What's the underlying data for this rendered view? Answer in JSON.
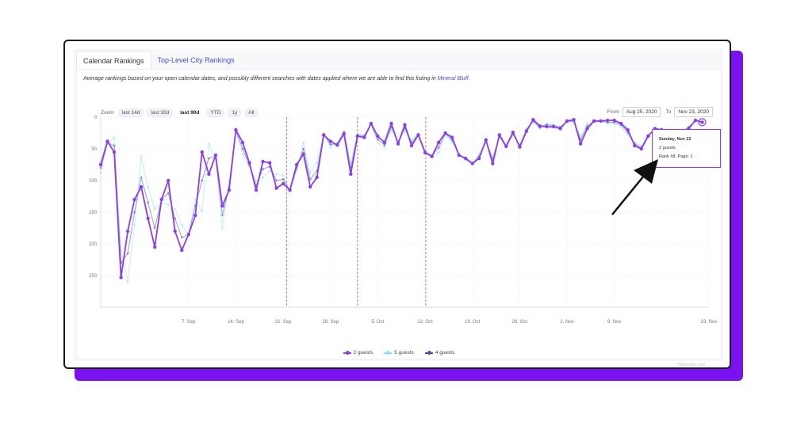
{
  "tabs": [
    {
      "label": "Calendar Rankings",
      "active": true
    },
    {
      "label": "Top-Level City Rankings",
      "active": false
    }
  ],
  "description": {
    "text": "Average rankings based on your open calendar dates, and possibly different searches with dates applied where we are able to find this listing in",
    "link": "Mineral Bluff."
  },
  "zoom": {
    "label": "Zoom",
    "options": [
      "last 14d",
      "last 30d",
      "last 90d",
      "YTD",
      "1y",
      "All"
    ],
    "selected": "last 90d"
  },
  "date_range": {
    "from_label": "From",
    "from_value": "Aug 25, 2020",
    "to_label": "To",
    "to_value": "Nov 23, 2020"
  },
  "tooltip": {
    "title": "Sunday, Nov 22",
    "series": "2 guests",
    "detail": "Rank #8, Page: 1"
  },
  "credit": "Highcharts.com",
  "colors": {
    "accent": "#7a12f0",
    "series_2": "#8b3fe8",
    "series_5": "#8fdff0",
    "series_4": "#4d4fa3",
    "plotband": "#d9534f"
  },
  "chart_data": {
    "type": "line",
    "title": "",
    "xlabel": "",
    "ylabel": "",
    "reversed_y": true,
    "ylim": [
      0,
      300
    ],
    "yticks": [
      0,
      50,
      100,
      150,
      200,
      250
    ],
    "x_start_label": "Aug 25",
    "x_end_day": 90,
    "xticks": [
      {
        "day": 13,
        "label": "7. Sep"
      },
      {
        "day": 20,
        "label": "14. Sep"
      },
      {
        "day": 27,
        "label": "21. Sep"
      },
      {
        "day": 34,
        "label": "28. Sep"
      },
      {
        "day": 41,
        "label": "5. Oct"
      },
      {
        "day": 48,
        "label": "12. Oct"
      },
      {
        "day": 55,
        "label": "19. Oct"
      },
      {
        "day": 62,
        "label": "26. Oct"
      },
      {
        "day": 69,
        "label": "2. Nov"
      },
      {
        "day": 76,
        "label": "9. Nov"
      },
      {
        "day": 90,
        "label": "23. Nov"
      }
    ],
    "vlines": [
      27.5,
      38,
      48.1
    ],
    "series": [
      {
        "name": "2 guests",
        "color": "#8b3fe8",
        "values": [
          75,
          38,
          55,
          253,
          180,
          130,
          110,
          160,
          205,
          130,
          100,
          180,
          210,
          185,
          155,
          55,
          90,
          60,
          140,
          115,
          20,
          40,
          72,
          115,
          70,
          72,
          112,
          105,
          115,
          75,
          58,
          110,
          95,
          28,
          38,
          44,
          26,
          90,
          30,
          32,
          10,
          30,
          40,
          10,
          42,
          12,
          45,
          28,
          56,
          62,
          40,
          25,
          32,
          60,
          65,
          73,
          65,
          36,
          73,
          28,
          46,
          24,
          47,
          22,
          4,
          14,
          15,
          15,
          18,
          6,
          4,
          42,
          18,
          6,
          6,
          5,
          5,
          10,
          20,
          45,
          50,
          30,
          18,
          20,
          40,
          22,
          25,
          18,
          5,
          8
        ]
      },
      {
        "name": "5 guests",
        "color": "#8fdff0",
        "values": [
          88,
          42,
          32,
          210,
          260,
          170,
          62,
          110,
          145,
          135,
          138,
          145,
          170,
          185,
          130,
          148,
          42,
          66,
          176,
          100,
          22,
          58,
          78,
          100,
          95,
          85,
          90,
          92,
          118,
          84,
          40,
          88,
          72,
          26,
          48,
          40,
          22,
          72,
          26,
          28,
          12,
          40,
          48,
          20,
          38,
          22,
          35,
          26,
          53,
          60,
          56,
          28,
          40,
          58,
          68,
          74,
          58,
          40,
          62,
          32,
          48,
          28,
          44,
          18,
          8,
          18,
          10,
          12,
          15,
          8,
          8,
          30,
          10,
          8,
          6,
          10,
          10,
          15,
          28,
          40,
          45,
          28,
          20,
          18,
          35,
          22,
          22,
          15,
          5,
          8
        ]
      },
      {
        "name": "4 guests",
        "color": "#4d4fa3",
        "values": [
          80,
          40,
          45,
          230,
          215,
          150,
          95,
          135,
          175,
          130,
          120,
          160,
          190,
          185,
          140,
          100,
          65,
          62,
          155,
          110,
          21,
          50,
          75,
          108,
          82,
          78,
          100,
          98,
          116,
          80,
          50,
          98,
          85,
          27,
          43,
          42,
          24,
          80,
          28,
          30,
          11,
          35,
          44,
          15,
          40,
          17,
          40,
          27,
          55,
          61,
          48,
          26,
          36,
          59,
          66,
          73,
          62,
          38,
          67,
          30,
          47,
          26,
          45,
          20,
          6,
          16,
          12,
          13,
          16,
          7,
          6,
          35,
          14,
          7,
          6,
          8,
          8,
          12,
          24,
          42,
          48,
          29,
          19,
          19,
          38,
          22,
          23,
          16,
          5,
          8
        ]
      }
    ]
  }
}
